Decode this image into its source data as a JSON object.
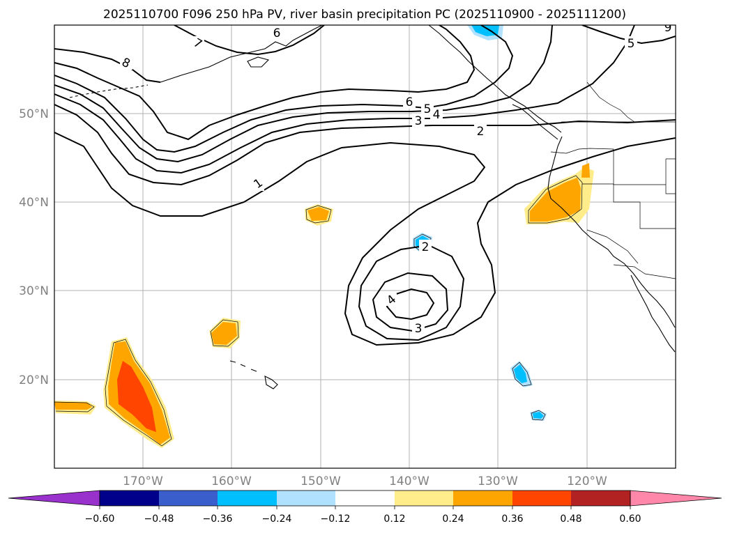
{
  "title": "2025110700 F096 250 hPa PV, river basin precipitation PC (2025110900 - 2025111200)",
  "map": {
    "projection": "PlateCarree",
    "extent": {
      "lon_min": -180,
      "lon_max": -110,
      "lat_min": 10,
      "lat_max": 60
    },
    "gridlines": true,
    "lat_labels": [
      "50°N",
      "40°N",
      "30°N",
      "20°N"
    ],
    "lon_labels": [
      "170°W",
      "160°W",
      "150°W",
      "140°W",
      "130°W",
      "120°W"
    ],
    "contour_labels": [
      "8",
      "7",
      "6",
      "5",
      "6",
      "5",
      "4",
      "3",
      "2",
      "1",
      "2",
      "3",
      "4",
      "9"
    ],
    "colors": {
      "contour": "#000000",
      "grid": "#b0b0b0",
      "coast": "#000000"
    }
  },
  "colorbar": {
    "ticks": [
      "−0.60",
      "−0.48",
      "−0.36",
      "−0.24",
      "−0.12",
      "0.12",
      "0.24",
      "0.36",
      "0.48",
      "0.60"
    ],
    "colors": [
      "#9932cc",
      "#00008b",
      "#3a5fcd",
      "#00bfff",
      "#b0e2ff",
      "#ffffff",
      "#ffec8b",
      "#ffa500",
      "#ff4500",
      "#b22222",
      "#ff88aa"
    ],
    "extend": "both"
  }
}
